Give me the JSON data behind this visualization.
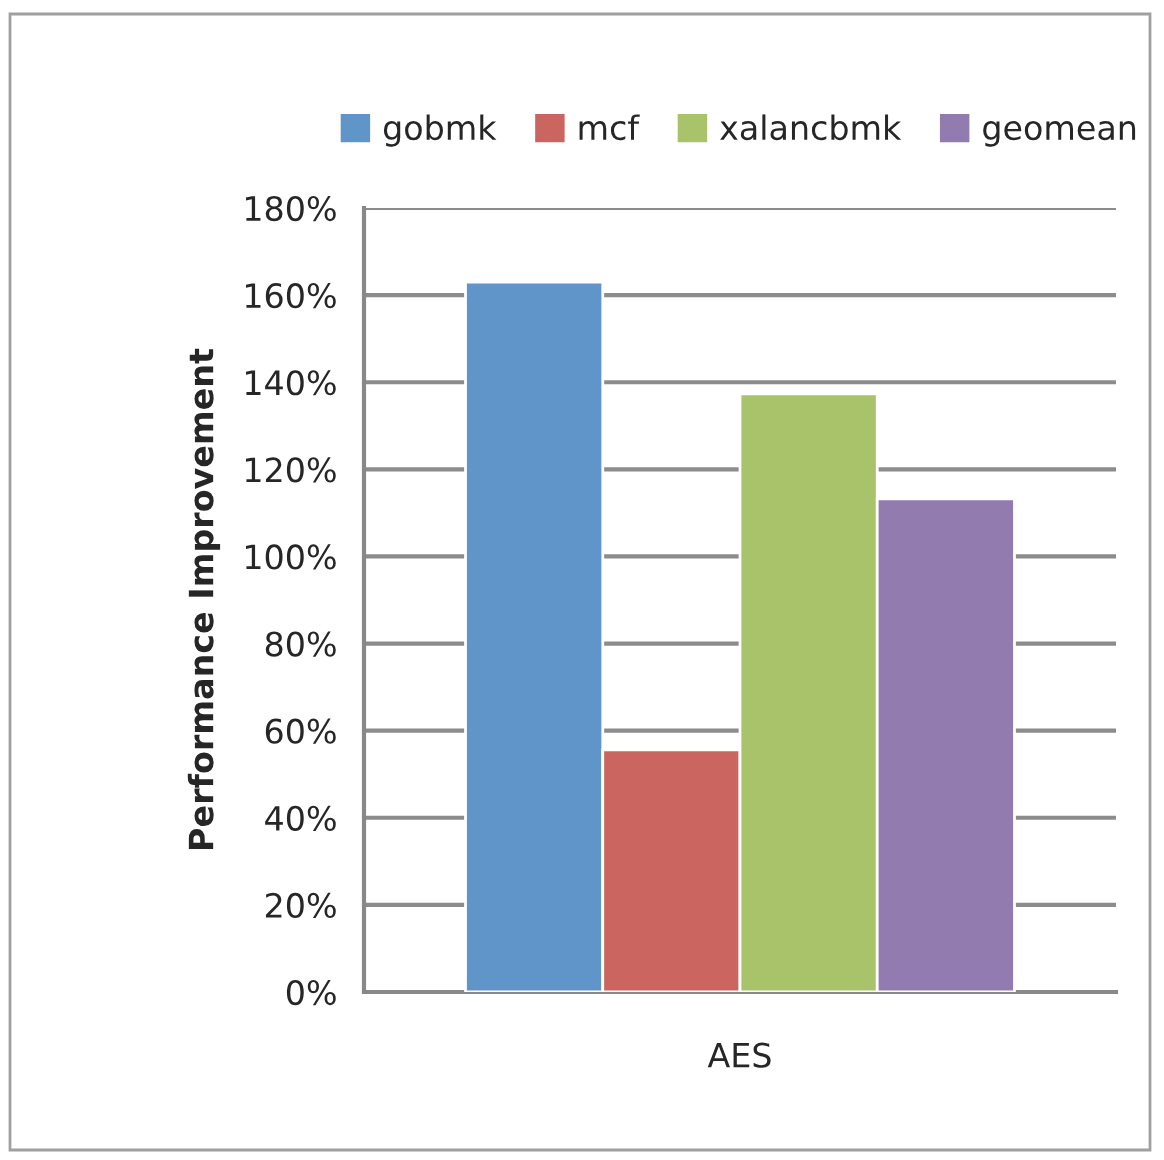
{
  "chart_data": {
    "type": "bar",
    "ylabel": "Performance Improvement",
    "categories": [
      "AES"
    ],
    "series": [
      {
        "name": "gobmk",
        "color": "#6095c9",
        "values": [
          163
        ]
      },
      {
        "name": "mcf",
        "color": "#cb6560",
        "values": [
          55.6
        ]
      },
      {
        "name": "xalancbmk",
        "color": "#a9c36b",
        "values": [
          137.3
        ]
      },
      {
        "name": "geomean",
        "color": "#927baf",
        "values": [
          113.2
        ]
      }
    ],
    "ylim": [
      0,
      180
    ],
    "yticks": [
      {
        "value": 0,
        "label": "0%"
      },
      {
        "value": 20,
        "label": "20%"
      },
      {
        "value": 40,
        "label": "40%"
      },
      {
        "value": 60,
        "label": "60%"
      },
      {
        "value": 80,
        "label": "80%"
      },
      {
        "value": 100,
        "label": "100%"
      },
      {
        "value": 120,
        "label": "120%"
      },
      {
        "value": 140,
        "label": "140%"
      },
      {
        "value": 160,
        "label": "160%"
      },
      {
        "value": 180,
        "label": "180%"
      }
    ],
    "grid": "y",
    "legend": "top"
  }
}
